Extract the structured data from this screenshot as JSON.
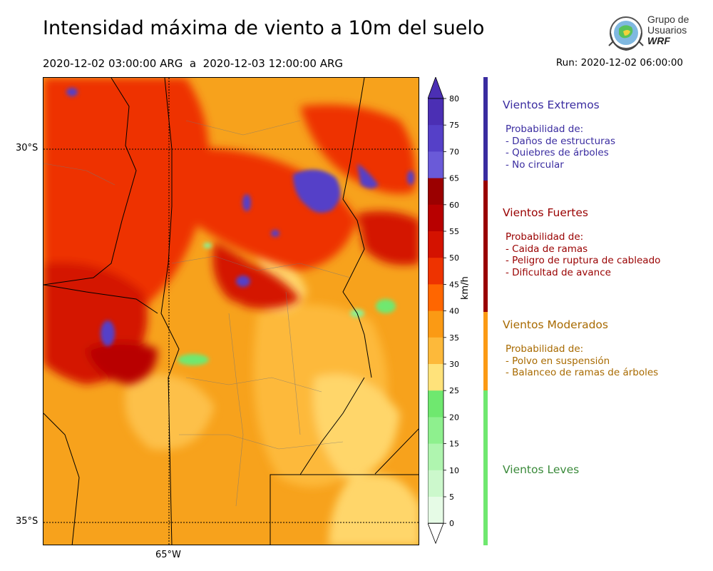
{
  "title": "Intensidad máxima de viento a 10m del suelo",
  "subtitle": "2020-12-02 03:00:00 ARG  a  2020-12-03 12:00:00 ARG",
  "run": "Run: 2020-12-02 06:00:00",
  "logo": {
    "line1": "Grupo de",
    "line2": "Usuarios",
    "line3": "WRF"
  },
  "map": {
    "lat_labels": [
      "30°S",
      "35°S"
    ],
    "lon_labels": [
      "65°W"
    ]
  },
  "colorbar": {
    "unit": "km/h",
    "ticks": [
      "80",
      "75",
      "70",
      "65",
      "60",
      "55",
      "50",
      "45",
      "40",
      "35",
      "30",
      "25",
      "20",
      "15",
      "10",
      "5",
      "0"
    ],
    "colors": [
      "#4b2fb4",
      "#5540c8",
      "#6a5ad8",
      "#9b0000",
      "#b80000",
      "#d41200",
      "#ee3300",
      "#ff6600",
      "#fb9a14",
      "#fdb93a",
      "#ffe27a",
      "#6fe86f",
      "#8ef08e",
      "#aff5af",
      "#ccf8cc",
      "#e6fbe6"
    ]
  },
  "categories": [
    {
      "title": "Vientos Extremos",
      "color": "#3a2ca0",
      "lines": [
        "Probabilidad de:",
        "- Daños de estructuras",
        "- Quiebres de árboles",
        "- No circular"
      ]
    },
    {
      "title": "Vientos Fuertes",
      "color": "#990000",
      "lines": [
        "Probabilidad de:",
        "- Caida de ramas",
        "- Peligro de ruptura de cableado",
        "- Dificultad de avance"
      ]
    },
    {
      "title": "Vientos Moderados",
      "color": "#a86a00",
      "lines": [
        "Probabilidad de:",
        "- Polvo en suspensión",
        "- Balanceo de ramas de árboles"
      ]
    },
    {
      "title": "Vientos Leves",
      "color": "#3a8a3a",
      "lines": []
    }
  ]
}
